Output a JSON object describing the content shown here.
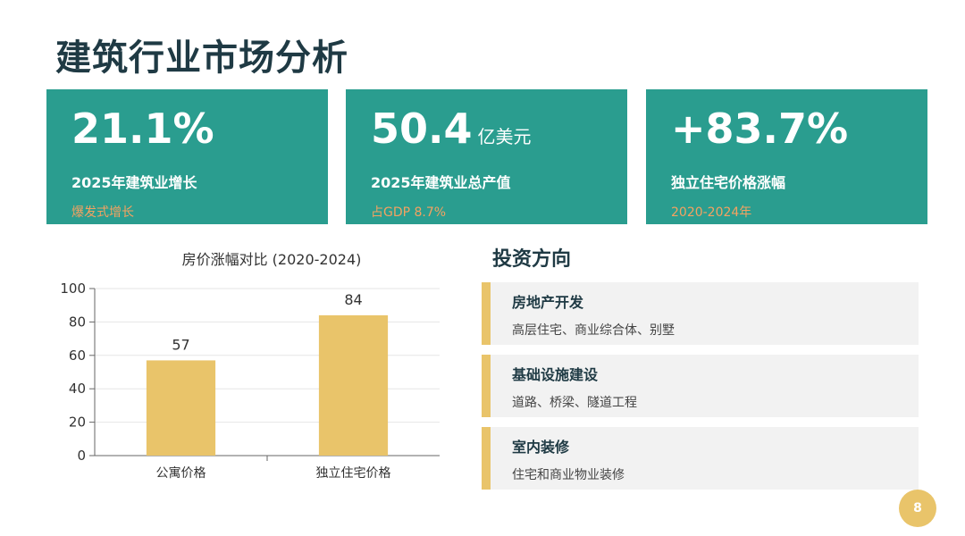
{
  "page": {
    "title": "建筑行业市场分析",
    "page_number": "8"
  },
  "stats": [
    {
      "value": "21.1%",
      "unit": "",
      "label": "2025年建筑业增长",
      "note": "爆发式增长"
    },
    {
      "value": "50.4",
      "unit": "亿美元",
      "label": "2025年建筑业总产值",
      "note": "占GDP 8.7%"
    },
    {
      "value": "+83.7%",
      "unit": "",
      "label": "独立住宅价格涨幅",
      "note": "2020-2024年"
    }
  ],
  "invest": {
    "title": "投资方向",
    "items": [
      {
        "name": "房地产开发",
        "desc": "高层住宅、商业综合体、别墅"
      },
      {
        "name": "基础设施建设",
        "desc": "道路、桥梁、隧道工程"
      },
      {
        "name": "室内装修",
        "desc": "住宅和商业物业装修"
      }
    ]
  },
  "colors": {
    "card_bg": "#2a9d8f",
    "accent_orange": "#f4a261",
    "accent_yellow": "#e9c46a",
    "title_text": "#1f3a44"
  },
  "chart_data": {
    "type": "bar",
    "title": "房价涨幅对比 (2020-2024)",
    "categories": [
      "公寓价格",
      "独立住宅价格"
    ],
    "values": [
      57,
      84
    ],
    "data_labels": [
      "57",
      "84"
    ],
    "xlabel": "",
    "ylabel": "",
    "ylim": [
      0,
      100
    ],
    "yticks": [
      0,
      20,
      40,
      60,
      80,
      100
    ],
    "grid": true,
    "bar_color": "#e9c46a"
  }
}
